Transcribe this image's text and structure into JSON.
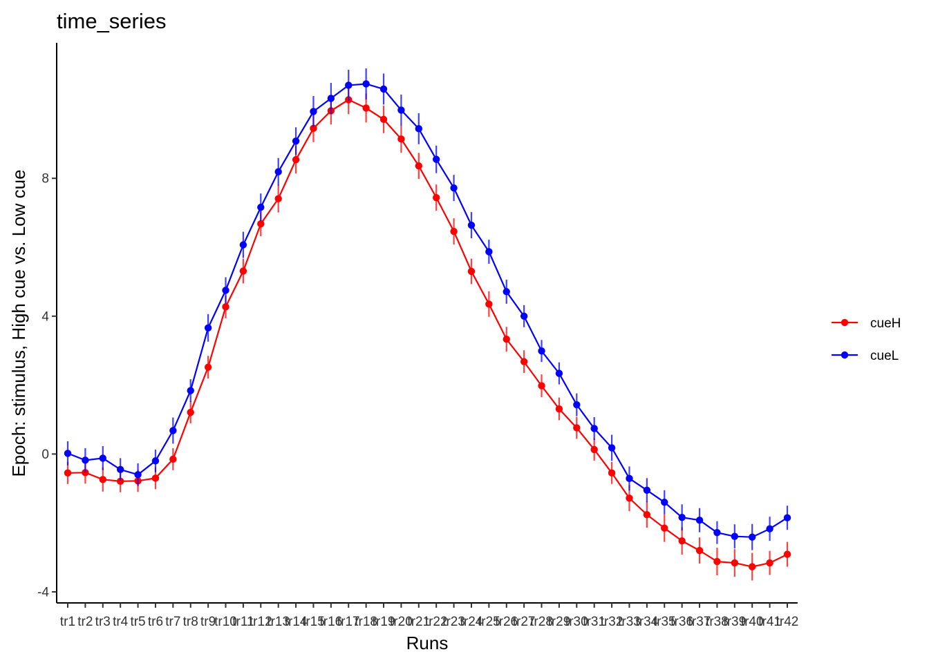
{
  "chart_data": {
    "type": "line",
    "title": "time_series",
    "xlabel": "Runs",
    "ylabel": "Epoch: stimulus, High cue vs. Low cue",
    "ylim": [
      -4.4,
      12
    ],
    "yticks": [
      -4,
      0,
      4,
      8
    ],
    "grid": false,
    "legend_position": "right",
    "x": [
      "tr1",
      "tr2",
      "tr3",
      "tr4",
      "tr5",
      "tr6",
      "tr7",
      "tr8",
      "tr9",
      "tr10",
      "tr11",
      "tr12",
      "tr13",
      "tr14",
      "tr15",
      "tr16",
      "tr17",
      "tr18",
      "tr19",
      "tr20",
      "tr21",
      "tr22",
      "tr23",
      "tr24",
      "tr25",
      "tr26",
      "tr27",
      "tr28",
      "tr29",
      "tr30",
      "tr31",
      "tr32",
      "tr33",
      "tr34",
      "tr35",
      "tr36",
      "tr37",
      "tr38",
      "tr39",
      "tr40",
      "tr41",
      "tr42"
    ],
    "series": [
      {
        "name": "cueH",
        "color": "#ff0000",
        "values": [
          -0.55,
          -0.54,
          -0.74,
          -0.79,
          -0.78,
          -0.7,
          -0.15,
          1.21,
          2.52,
          4.27,
          5.31,
          6.68,
          7.41,
          8.54,
          9.45,
          9.96,
          10.28,
          10.04,
          9.71,
          9.14,
          8.36,
          7.44,
          6.46,
          5.3,
          4.35,
          3.33,
          2.68,
          1.98,
          1.31,
          0.76,
          0.13,
          -0.55,
          -1.28,
          -1.76,
          -2.15,
          -2.52,
          -2.8,
          -3.12,
          -3.16,
          -3.27,
          -3.16,
          -2.91
        ],
        "errors": [
          0.32,
          0.32,
          0.35,
          0.32,
          0.32,
          0.32,
          0.32,
          0.32,
          0.33,
          0.33,
          0.36,
          0.36,
          0.4,
          0.4,
          0.4,
          0.4,
          0.42,
          0.42,
          0.4,
          0.4,
          0.38,
          0.38,
          0.38,
          0.37,
          0.37,
          0.36,
          0.33,
          0.33,
          0.33,
          0.32,
          0.32,
          0.32,
          0.38,
          0.38,
          0.4,
          0.4,
          0.38,
          0.4,
          0.4,
          0.4,
          0.35,
          0.36
        ]
      },
      {
        "name": "cueL",
        "color": "#0000ff",
        "values": [
          0.02,
          -0.18,
          -0.12,
          -0.45,
          -0.6,
          -0.2,
          0.68,
          1.84,
          3.66,
          4.75,
          6.07,
          7.16,
          8.19,
          9.08,
          9.94,
          10.32,
          10.7,
          10.74,
          10.59,
          9.98,
          9.44,
          8.55,
          7.72,
          6.64,
          5.87,
          4.71,
          4.0,
          2.99,
          2.34,
          1.43,
          0.74,
          0.18,
          -0.71,
          -1.05,
          -1.4,
          -1.84,
          -1.92,
          -2.28,
          -2.39,
          -2.41,
          -2.17,
          -1.85
        ],
        "errors": [
          0.35,
          0.35,
          0.35,
          0.33,
          0.33,
          0.33,
          0.38,
          0.33,
          0.4,
          0.38,
          0.38,
          0.4,
          0.4,
          0.4,
          0.45,
          0.45,
          0.45,
          0.45,
          0.45,
          0.45,
          0.45,
          0.4,
          0.38,
          0.38,
          0.35,
          0.35,
          0.32,
          0.32,
          0.32,
          0.33,
          0.33,
          0.38,
          0.35,
          0.35,
          0.35,
          0.38,
          0.35,
          0.33,
          0.35,
          0.38,
          0.35,
          0.35
        ]
      }
    ]
  }
}
